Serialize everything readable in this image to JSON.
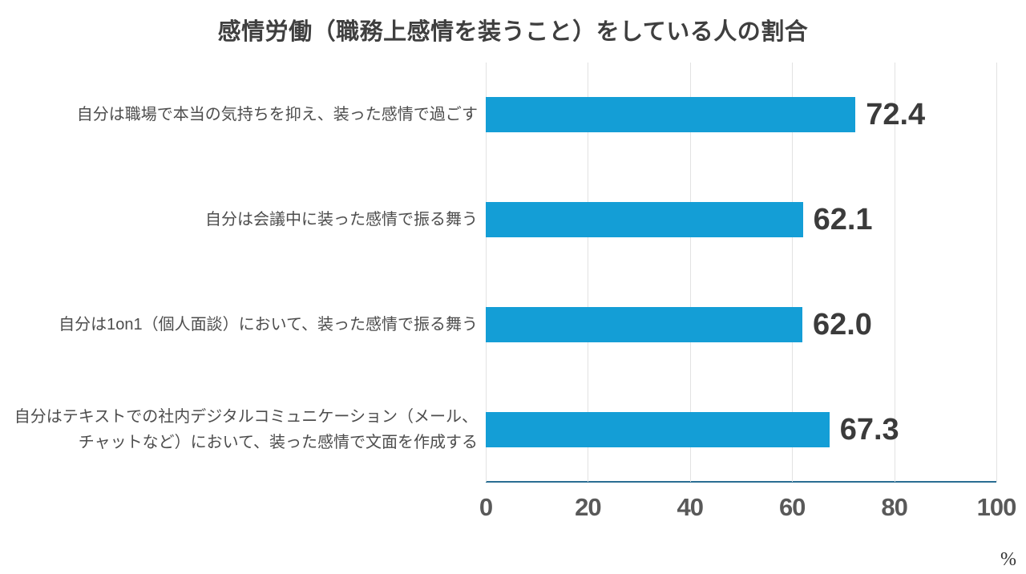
{
  "title": "感情労働（職務上感情を装うこと）をしている人の割合",
  "unit_label": "%",
  "chart_data": {
    "type": "bar",
    "orientation": "horizontal",
    "title": "感情労働（職務上感情を装うこと）をしている人の割合",
    "categories": [
      "自分は職場で本当の気持ちを抑え、装った感情で過ごす",
      "自分は会議中に装った感情で振る舞う",
      "自分は1on1（個人面談）において、装った感情で振る舞う",
      "自分はテキストでの社内デジタルコミュニケーション（メール、チャットなど）において、装った感情で文面を作成する"
    ],
    "values": [
      72.4,
      62.1,
      62.0,
      67.3
    ],
    "value_labels": [
      "72.4",
      "62.1",
      "62.0",
      "67.3"
    ],
    "xlabel": "",
    "ylabel": "",
    "unit": "%",
    "xlim": [
      0,
      100
    ],
    "xticks": [
      0,
      20,
      40,
      60,
      80,
      100
    ],
    "grid": true,
    "legend": false,
    "bar_color": "#149ed6",
    "axis_line_color": "#2a6d93",
    "gridline_color": "#e2e2e2"
  }
}
